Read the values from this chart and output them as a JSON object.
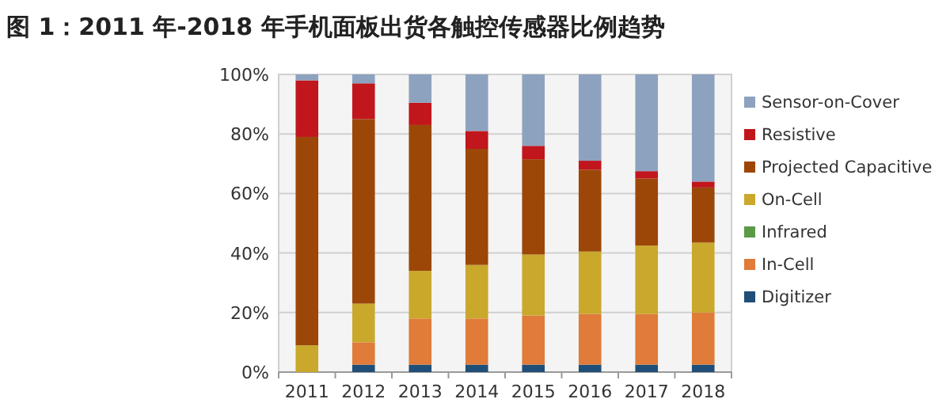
{
  "chart_data": {
    "type": "bar",
    "stacked": true,
    "title": "图 1：2011 年-2018 年手机面板出货各触控传感器比例趋势",
    "categories": [
      "2011",
      "2012",
      "2013",
      "2014",
      "2015",
      "2016",
      "2017",
      "2018"
    ],
    "series": [
      {
        "name": "Digitizer",
        "color": "#1f4e79",
        "values": [
          0,
          2.5,
          2.5,
          2.5,
          2.5,
          2.5,
          2.5,
          2.5
        ]
      },
      {
        "name": "In-Cell",
        "color": "#e07b39",
        "values": [
          0,
          7.5,
          15.5,
          15.5,
          16.5,
          17,
          17,
          17.5
        ]
      },
      {
        "name": "Infrared",
        "color": "#5b9a46",
        "values": [
          0,
          0,
          0,
          0,
          0,
          0,
          0,
          0
        ]
      },
      {
        "name": "On-Cell",
        "color": "#c9a82c",
        "values": [
          9,
          13,
          16,
          18,
          20.5,
          21,
          23,
          23.5
        ]
      },
      {
        "name": "Projected Capacitive",
        "color": "#9c4708",
        "values": [
          70,
          62,
          49,
          39,
          32,
          27.5,
          22.5,
          18.5
        ]
      },
      {
        "name": "Resistive",
        "color": "#c0161c",
        "values": [
          19,
          12,
          7.5,
          6,
          4.5,
          3,
          2.5,
          2
        ]
      },
      {
        "name": "Sensor-on-Cover",
        "color": "#8da2bf",
        "values": [
          2,
          3,
          9.5,
          19,
          24,
          29,
          32.5,
          36
        ]
      }
    ],
    "ylim": [
      0,
      100
    ],
    "yticks": [
      {
        "value": 0,
        "label": "0%"
      },
      {
        "value": 20,
        "label": "20%"
      },
      {
        "value": 40,
        "label": "40%"
      },
      {
        "value": 60,
        "label": "60%"
      },
      {
        "value": 80,
        "label": "80%"
      },
      {
        "value": 100,
        "label": "100%"
      }
    ],
    "grid": "y",
    "legend": "right"
  }
}
